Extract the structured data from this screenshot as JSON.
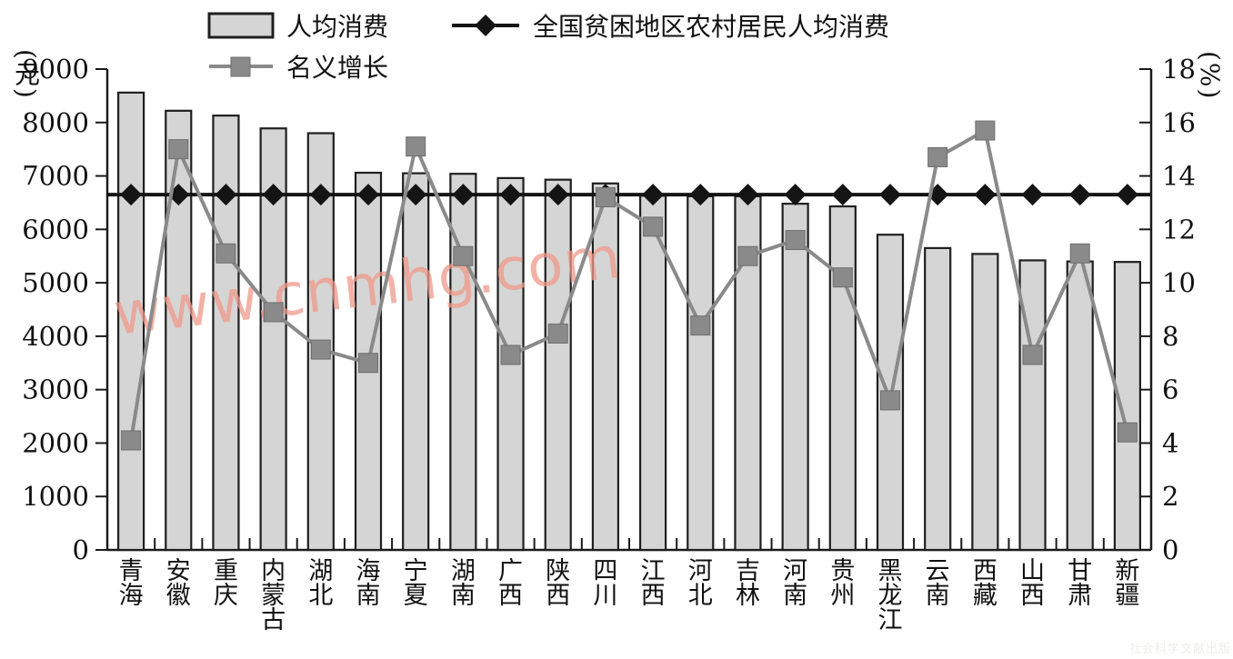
{
  "legend": {
    "bar_label": "人均消费",
    "national_label": "全国贫困地区农村居民人均消费",
    "growth_label": "名义增长"
  },
  "watermark": {
    "site": "www.cnmhg.com",
    "publisher": "社会科学文献出版社"
  },
  "chart_data": {
    "type": "bar",
    "title": "",
    "categories": [
      "青海",
      "安徽",
      "重庆",
      "内蒙古",
      "湖北",
      "海南",
      "宁夏",
      "湖南",
      "广西",
      "陕西",
      "四川",
      "江西",
      "河北",
      "吉林",
      "河南",
      "贵州",
      "黑龙江",
      "云南",
      "西藏",
      "山西",
      "甘肃",
      "新疆"
    ],
    "series": [
      {
        "name": "人均消费",
        "type": "bar",
        "axis": "left",
        "unit": "元",
        "values": [
          8560,
          8220,
          8130,
          7890,
          7800,
          7060,
          7050,
          7040,
          6960,
          6930,
          6860,
          6630,
          6620,
          6620,
          6480,
          6430,
          5900,
          5650,
          5540,
          5420,
          5400,
          5390
        ]
      },
      {
        "name": "名义增长",
        "type": "line",
        "marker": "square",
        "axis": "right",
        "unit": "%",
        "values": [
          4.1,
          15.0,
          11.1,
          8.9,
          7.5,
          7.0,
          15.1,
          11.0,
          7.3,
          8.1,
          13.2,
          12.1,
          8.4,
          11.0,
          11.6,
          10.2,
          5.6,
          14.7,
          15.7,
          7.3,
          11.1,
          4.4
        ]
      },
      {
        "name": "全国贫困地区农村居民人均消费",
        "type": "line",
        "marker": "diamond",
        "axis": "left",
        "unit": "元",
        "constant": 6650
      }
    ],
    "left_axis": {
      "label": "(元)",
      "min": 0,
      "max": 9000,
      "step": 1000
    },
    "right_axis": {
      "label": "(%)",
      "min": 0,
      "max": 18,
      "step": 2
    },
    "legend_position": "top",
    "grid": false,
    "colors": {
      "bar_fill": "#d5d5d5",
      "bar_stroke": "#1f1f1f",
      "growth_line": "#8a8a8a",
      "growth_marker": "#8a8a8a",
      "national_line": "#141414",
      "axis": "#1a1a1a",
      "watermark": "#f0998a"
    }
  }
}
